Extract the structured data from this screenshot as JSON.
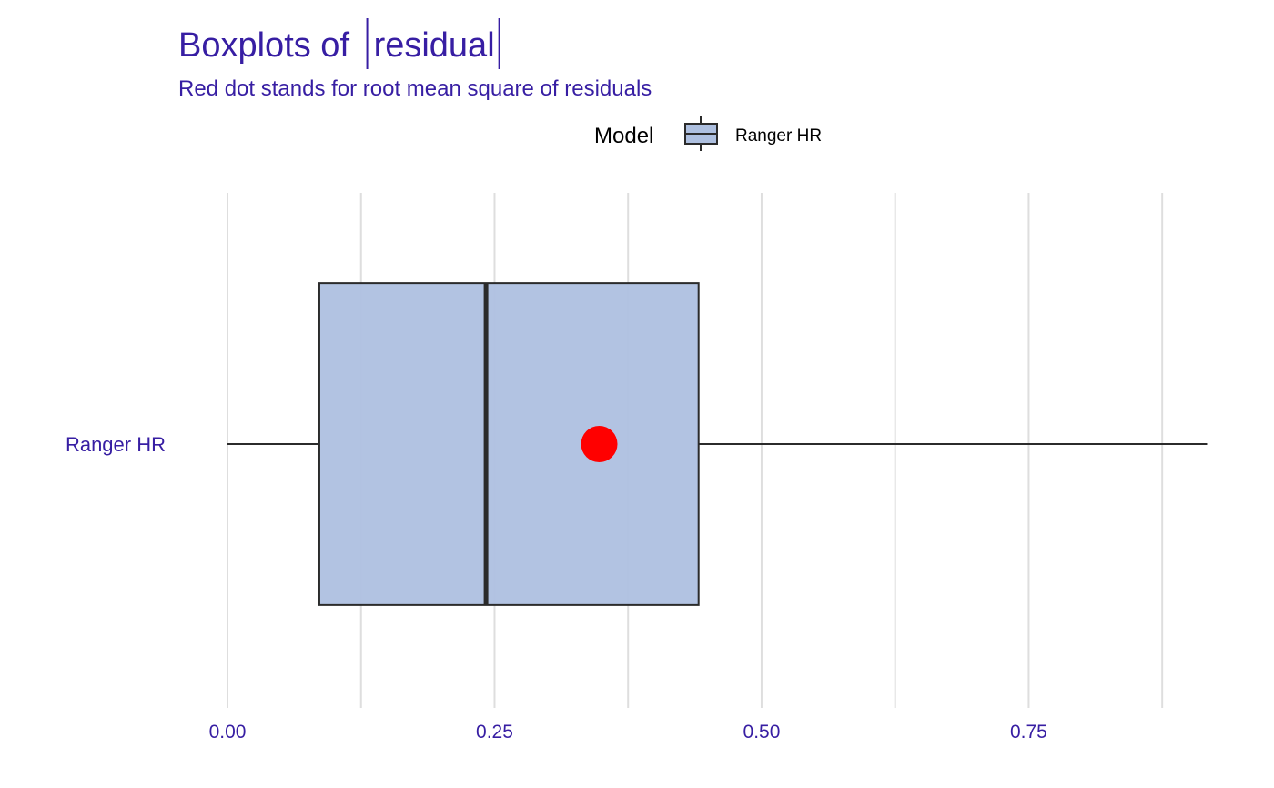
{
  "chart_data": {
    "type": "boxplot",
    "orientation": "horizontal",
    "title": "Boxplots of ",
    "title_abs_label": "residual",
    "subtitle": "Red dot stands for root mean square of residuals",
    "legend": {
      "title": "Model",
      "position": "top",
      "entries": [
        "Ranger HR"
      ]
    },
    "xlim": [
      0,
      0.92
    ],
    "x_ticks": [
      0,
      0.25,
      0.5,
      0.75
    ],
    "x_tick_labels": [
      "0.00",
      "0.25",
      "0.50",
      "0.75"
    ],
    "x_minor_gridlines": [
      0.125,
      0.375,
      0.625,
      0.875
    ],
    "grid": "vertical",
    "series": [
      {
        "category": "Ranger HR",
        "min": 0.0,
        "q1": 0.086,
        "median": 0.242,
        "q3": 0.441,
        "max": 0.917,
        "rmse": 0.348
      }
    ],
    "colors": {
      "title": "#371EA3",
      "box_fill": "#AEC0E0",
      "box_stroke": "#2b2b2b",
      "rmse_dot": "#FF0000",
      "grid": "#DEDEDE",
      "axis_text": "#371EA3",
      "legend_text": "#000000"
    }
  }
}
